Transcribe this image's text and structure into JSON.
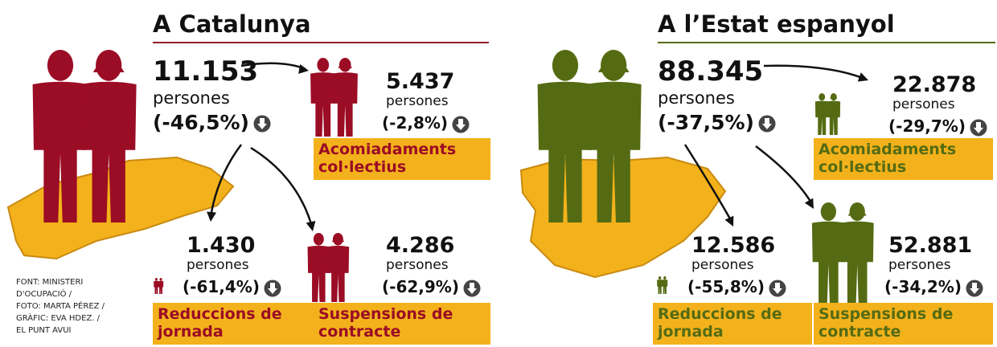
{
  "panels": [
    {
      "title": "A Catalunya",
      "total": {
        "value": "11.153",
        "unit": "persones",
        "change": "(-46,5%)"
      },
      "items": [
        {
          "value": "5.437",
          "unit": "persones",
          "change": "(-2,8%)",
          "label": "Acomiadaments col·lectius"
        },
        {
          "value": "1.430",
          "unit": "persones",
          "change": "(-61,4%)",
          "label": "Reduccions de jornada"
        },
        {
          "value": "4.286",
          "unit": "persones",
          "change": "(-62,9%)",
          "label": "Suspensions de contracte"
        }
      ]
    },
    {
      "title": "A l’Estat espanyol",
      "total": {
        "value": "88.345",
        "unit": "persones",
        "change": "(-37,5%)"
      },
      "items": [
        {
          "value": "22.878",
          "unit": "persones",
          "change": "(-29,7%)",
          "label": "Acomiadaments col·lectius"
        },
        {
          "value": "12.586",
          "unit": "persones",
          "change": "(-55,8%)",
          "label": "Reduccions de jornada"
        },
        {
          "value": "52.881",
          "unit": "persones",
          "change": "(-34,2%)",
          "label": "Suspensions de contracte"
        }
      ]
    }
  ],
  "credits": [
    "FONT: MINISTERI",
    "D'OCUPACIÓ /",
    "FOTO: MARTA PÉREZ /",
    "GRÀFIC: EVA HDEZ. /",
    "EL PUNT AVUI"
  ]
}
